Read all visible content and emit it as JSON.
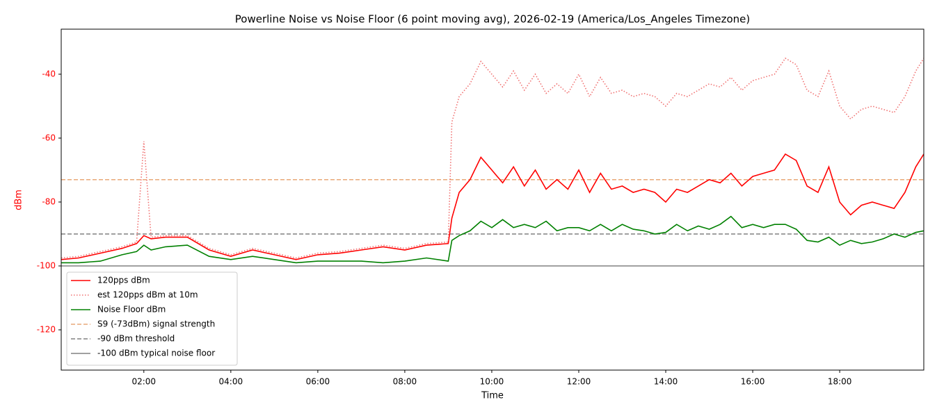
{
  "chart_data": {
    "type": "line",
    "title": "Powerline Noise vs Noise Floor (6 point moving avg), 2026-02-19 (America/Los_Angeles Timezone)",
    "x_label": "Time",
    "y_label": "dBm",
    "x": [
      "00:06",
      "00:30",
      "01:00",
      "01:30",
      "01:50",
      "02:00",
      "02:10",
      "02:30",
      "03:00",
      "03:30",
      "04:00",
      "04:30",
      "05:00",
      "05:30",
      "06:00",
      "06:30",
      "07:00",
      "07:30",
      "08:00",
      "08:30",
      "09:00",
      "09:05",
      "09:15",
      "09:30",
      "09:45",
      "10:00",
      "10:15",
      "10:30",
      "10:45",
      "11:00",
      "11:15",
      "11:30",
      "11:45",
      "12:00",
      "12:15",
      "12:30",
      "12:45",
      "13:00",
      "13:15",
      "13:30",
      "13:45",
      "14:00",
      "14:15",
      "14:30",
      "14:45",
      "15:00",
      "15:15",
      "15:30",
      "15:45",
      "16:00",
      "16:15",
      "16:30",
      "16:45",
      "17:00",
      "17:15",
      "17:30",
      "17:45",
      "18:00",
      "18:15",
      "18:30",
      "18:45",
      "19:00",
      "19:15",
      "19:30",
      "19:45",
      "19:56"
    ],
    "series": [
      {
        "name": "120pps dBm",
        "color": "#ff0000",
        "style": "solid",
        "values": [
          -98,
          -97.5,
          -96,
          -94.5,
          -93,
          -90.5,
          -91.5,
          -91,
          -91,
          -95,
          -97,
          -95,
          -96.5,
          -98,
          -96.5,
          -96,
          -95,
          -94,
          -95,
          -93.5,
          -93,
          -85,
          -77,
          -73,
          -66,
          -70,
          -74,
          -69,
          -75,
          -70,
          -76,
          -73,
          -76,
          -70,
          -77,
          -71,
          -76,
          -75,
          -77,
          -76,
          -77,
          -80,
          -76,
          -77,
          -75,
          -73,
          -74,
          -71,
          -75,
          -72,
          -71,
          -70,
          -65,
          -67,
          -75,
          -77,
          -69,
          -80,
          -84,
          -81,
          -80,
          -81,
          -82,
          -77,
          -69,
          -65
        ]
      },
      {
        "name": "est 120pps dBm at 10m",
        "color": "#f07070",
        "style": "dotted",
        "values": [
          -97.5,
          -97,
          -95.5,
          -94,
          -92.5,
          -61,
          -91,
          -90.5,
          -90.5,
          -94.5,
          -96.5,
          -94.5,
          -96,
          -97.5,
          -96,
          -95.5,
          -94.5,
          -93.5,
          -94.5,
          -93,
          -92.5,
          -55,
          -47,
          -43,
          -36,
          -40,
          -44,
          -39,
          -45,
          -40,
          -46,
          -43,
          -46,
          -40,
          -47,
          -41,
          -46,
          -45,
          -47,
          -46,
          -47,
          -50,
          -46,
          -47,
          -45,
          -43,
          -44,
          -41,
          -45,
          -42,
          -41,
          -40,
          -35,
          -37,
          -45,
          -47,
          -39,
          -50,
          -54,
          -51,
          -50,
          -51,
          -52,
          -47,
          -39,
          -35
        ]
      },
      {
        "name": "Noise Floor dBm",
        "color": "#008000",
        "style": "solid",
        "values": [
          -99,
          -99,
          -98.5,
          -96.5,
          -95.5,
          -93.5,
          -95,
          -94,
          -93.5,
          -97,
          -98,
          -97,
          -98,
          -99,
          -98.5,
          -98.5,
          -98.5,
          -99,
          -98.5,
          -97.5,
          -98.5,
          -92,
          -90.5,
          -89,
          -86,
          -88,
          -85.5,
          -88,
          -87,
          -88,
          -86,
          -89,
          -88,
          -88,
          -89,
          -87,
          -89,
          -87,
          -88.5,
          -89,
          -90,
          -89.5,
          -87,
          -89,
          -87.5,
          -88.5,
          -87,
          -84.5,
          -88,
          -87,
          -88,
          -87,
          -87,
          -88.5,
          -92,
          -92.5,
          -91,
          -93.5,
          -92,
          -93,
          -92.5,
          -91.5,
          -90,
          -91,
          -89.5,
          -89
        ]
      }
    ],
    "hlines": [
      {
        "name": "S9 (-73dBm) signal strength",
        "value": -73,
        "color": "#e8a878",
        "style": "dashed"
      },
      {
        "name": "-90 dBm threshold",
        "value": -90,
        "color": "#808080",
        "style": "dashed"
      },
      {
        "name": "-100 dBm typical noise floor",
        "value": -100,
        "color": "#808080",
        "style": "solid"
      }
    ],
    "xlim": [
      "00:06",
      "19:56"
    ],
    "xticks": [
      "02:00",
      "04:00",
      "06:00",
      "08:00",
      "10:00",
      "12:00",
      "14:00",
      "16:00",
      "18:00"
    ],
    "ylim": [
      -132.6,
      -25.9
    ],
    "yticks": [
      -120,
      -100,
      -80,
      -60,
      -40
    ],
    "axis_color": "#ff0000",
    "legend": "lower left"
  }
}
